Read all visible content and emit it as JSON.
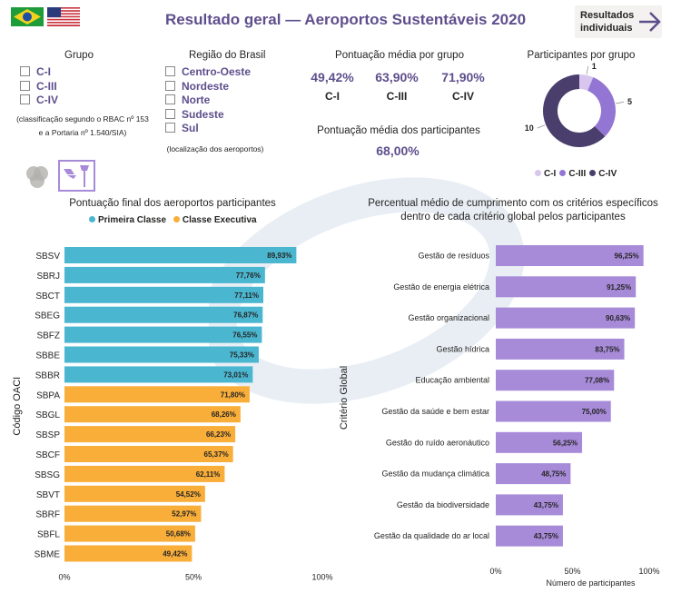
{
  "header": {
    "title": "Resultado geral — Aeroportos Sustentáveis 2020",
    "results_button": [
      "Resultados",
      "individuais"
    ]
  },
  "filters": {
    "group": {
      "title": "Grupo",
      "options": [
        "C-I",
        "C-III",
        "C-IV"
      ],
      "note": [
        "(classificação segundo o RBAC nº 153",
        "e a Portaria nº 1.540/SIA)"
      ]
    },
    "region": {
      "title": "Região do Brasil",
      "options": [
        "Centro-Oeste",
        "Nordeste",
        "Norte",
        "Sudeste",
        "Sul"
      ],
      "note": "(localização dos aeroportos)"
    }
  },
  "avg_by_group": {
    "title": "Pontuação média por grupo",
    "items": [
      {
        "value": "49,42%",
        "label": "C-I"
      },
      {
        "value": "63,90%",
        "label": "C-III"
      },
      {
        "value": "71,90%",
        "label": "C-IV"
      }
    ]
  },
  "avg_participants": {
    "title": "Pontuação média dos participantes",
    "value": "68,00%"
  },
  "colors": {
    "brand": "#5e4f8c",
    "first_class": "#4bb6d0",
    "executive": "#f9ae3a",
    "criteria_bar": "#a78bd9",
    "donut_ci": "#d8c6ee",
    "donut_ciii": "#9376d3",
    "donut_civ": "#4a3e6c"
  },
  "icons": [
    "brazil-flag",
    "us-flag",
    "venn-icon",
    "airport-icon",
    "arrow-right-icon"
  ],
  "chart_data": [
    {
      "type": "pie",
      "title": "Participantes por grupo",
      "categories": [
        "C-I",
        "C-III",
        "C-IV"
      ],
      "values": [
        1,
        5,
        10
      ],
      "labels": [
        "1",
        "5",
        "10"
      ],
      "legend": "bottom"
    },
    {
      "type": "bar",
      "orientation": "horizontal",
      "title": "Pontuação final dos aeroportos participantes",
      "ylabel": "Código OACI",
      "categories": [
        "SBSV",
        "SBRJ",
        "SBCT",
        "SBEG",
        "SBFZ",
        "SBBE",
        "SBBR",
        "SBPA",
        "SBGL",
        "SBSP",
        "SBCF",
        "SBSG",
        "SBVT",
        "SBRF",
        "SBFL",
        "SBME"
      ],
      "values": [
        89.93,
        77.76,
        77.11,
        76.87,
        76.55,
        75.33,
        73.01,
        71.8,
        68.26,
        66.23,
        65.37,
        62.11,
        54.52,
        52.97,
        50.68,
        49.42
      ],
      "value_labels": [
        "89,93%",
        "77,76%",
        "77,11%",
        "76,87%",
        "76,55%",
        "75,33%",
        "73,01%",
        "71,80%",
        "68,26%",
        "66,23%",
        "65,37%",
        "62,11%",
        "54,52%",
        "52,97%",
        "50,68%",
        "49,42%"
      ],
      "class": [
        "Primeira Classe",
        "Primeira Classe",
        "Primeira Classe",
        "Primeira Classe",
        "Primeira Classe",
        "Primeira Classe",
        "Primeira Classe",
        "Classe Executiva",
        "Classe Executiva",
        "Classe Executiva",
        "Classe Executiva",
        "Classe Executiva",
        "Classe Executiva",
        "Classe Executiva",
        "Classe Executiva",
        "Classe Executiva"
      ],
      "legend": [
        "Primeira Classe",
        "Classe Executiva"
      ],
      "xlim": [
        0,
        100
      ],
      "xticks": [
        "0%",
        "50%",
        "100%"
      ]
    },
    {
      "type": "bar",
      "orientation": "horizontal",
      "title": "Percentual médio de cumprimento com os critérios específicos dentro de cada critério global pelos participantes",
      "title_lines": [
        "Percentual médio de cumprimento com os critérios específicos",
        "dentro de cada critério global pelos participantes"
      ],
      "ylabel": "Critério Global",
      "xlabel": "Número de participantes",
      "categories": [
        "Gestão de resíduos",
        "Gestão de energia elétrica",
        "Gestão organizacional",
        "Gestão hídrica",
        "Educação ambiental",
        "Gestão da saúde e bem estar",
        "Gestão do ruído aeronáutico",
        "Gestão da mudança climática",
        "Gestão da biodiversidade",
        "Gestão da qualidade do ar local"
      ],
      "values": [
        96.25,
        91.25,
        90.63,
        83.75,
        77.08,
        75.0,
        56.25,
        48.75,
        43.75,
        43.75
      ],
      "value_labels": [
        "96,25%",
        "91,25%",
        "90,63%",
        "83,75%",
        "77,08%",
        "75,00%",
        "56,25%",
        "48,75%",
        "43,75%",
        "43,75%"
      ],
      "xlim": [
        0,
        100
      ],
      "xticks": [
        "0%",
        "50%",
        "100%"
      ]
    }
  ]
}
